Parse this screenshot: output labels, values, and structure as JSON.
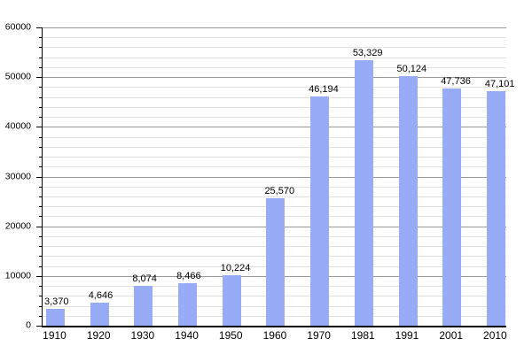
{
  "chart_data": {
    "type": "bar",
    "title": "",
    "xlabel": "",
    "ylabel": "",
    "categories": [
      "1910",
      "1920",
      "1930",
      "1940",
      "1950",
      "1960",
      "1970",
      "1981",
      "1991",
      "2001",
      "2010"
    ],
    "values": [
      3370,
      4646,
      8074,
      8466,
      10224,
      25570,
      46194,
      53329,
      50124,
      47736,
      47101
    ],
    "value_labels": [
      "3,370",
      "4,646",
      "8,074",
      "8,466",
      "10,224",
      "25,570",
      "46,194",
      "53,329",
      "50,124",
      "47,736",
      "47,101"
    ],
    "ylim": [
      0,
      60000
    ],
    "y_major_step": 10000,
    "y_minor_step": 2000,
    "y_tick_labels": [
      "0",
      "10000",
      "20000",
      "30000",
      "40000",
      "50000",
      "60000"
    ],
    "grid": true,
    "legend": "none",
    "colors": {
      "bar": "#97ABF7",
      "major_grid": "#999999",
      "minor_grid": "#e2e2e2",
      "axis": "#000000",
      "text": "#000000",
      "background": "#ffffff"
    }
  }
}
